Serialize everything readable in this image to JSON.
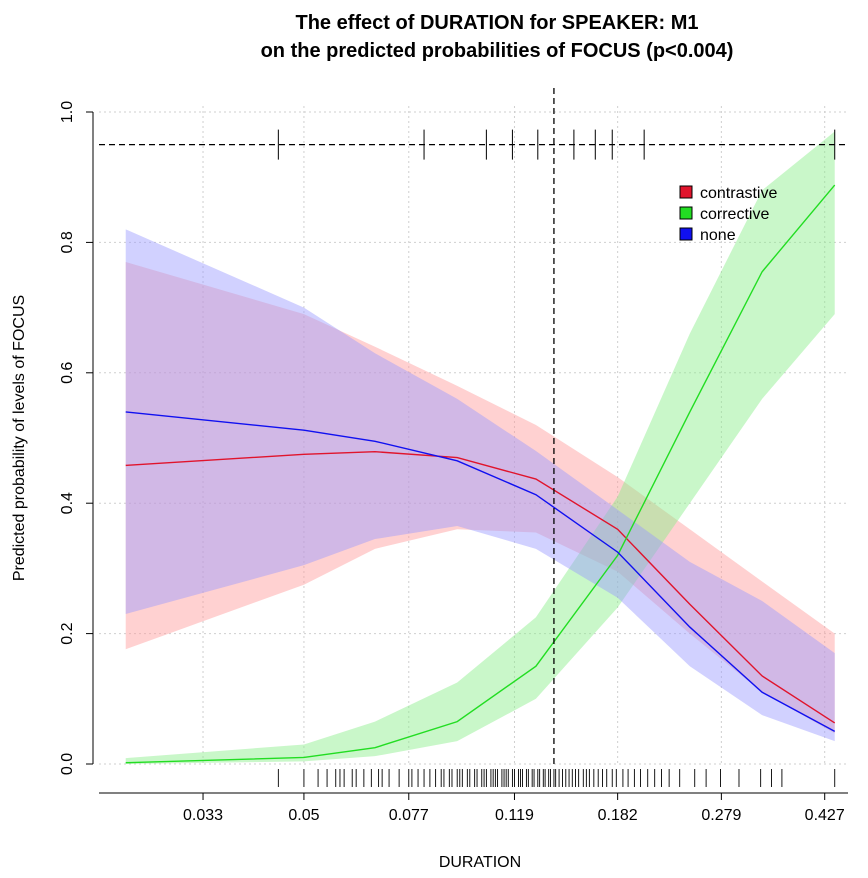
{
  "chart_data": {
    "type": "line",
    "title": "The effect of DURATION for SPEAKER: M1",
    "subtitle": "on the predicted probabilities of FOCUS (p<0.004)",
    "xlabel": "DURATION",
    "ylabel": "Predicted probability of levels of FOCUS",
    "x_scale": "log",
    "xlim": [
      0.0215,
      0.47
    ],
    "ylim": [
      0,
      1.0
    ],
    "x_ticks": [
      0.033,
      0.05,
      0.077,
      0.119,
      0.182,
      0.279,
      0.427
    ],
    "x_tick_labels": [
      "0.033",
      "0.05",
      "0.077",
      "0.119",
      "0.182",
      "0.279",
      "0.427"
    ],
    "y_ticks": [
      0,
      0.2,
      0.4,
      0.6,
      0.8,
      1.0
    ],
    "y_tick_labels": [
      "0.0",
      "0.2",
      "0.4",
      "0.6",
      "0.8",
      "1.0"
    ],
    "grid": true,
    "legend_position": "top-right",
    "colors": {
      "contrastive": "#e0142c",
      "corrective": "#22dd22",
      "none": "#1010f0",
      "contrastive_band": "#ff9a9a",
      "corrective_band": "#88ee88",
      "none_band": "#9a9aff"
    },
    "series": [
      {
        "name": "contrastive",
        "x": [
          0.024,
          0.05,
          0.067,
          0.094,
          0.13,
          0.182,
          0.245,
          0.33,
          0.445
        ],
        "values": [
          0.458,
          0.475,
          0.479,
          0.47,
          0.437,
          0.36,
          0.245,
          0.135,
          0.063
        ],
        "lower": [
          0.176,
          0.275,
          0.33,
          0.36,
          0.355,
          0.295,
          0.2,
          0.11,
          0.047
        ],
        "upper": [
          0.77,
          0.69,
          0.64,
          0.58,
          0.52,
          0.44,
          0.36,
          0.28,
          0.2
        ]
      },
      {
        "name": "corrective",
        "x": [
          0.024,
          0.05,
          0.067,
          0.094,
          0.13,
          0.182,
          0.245,
          0.33,
          0.445
        ],
        "values": [
          0.002,
          0.01,
          0.025,
          0.065,
          0.15,
          0.32,
          0.54,
          0.755,
          0.888
        ],
        "lower": [
          0.0,
          0.004,
          0.012,
          0.035,
          0.1,
          0.24,
          0.4,
          0.56,
          0.69
        ],
        "upper": [
          0.009,
          0.03,
          0.065,
          0.125,
          0.225,
          0.41,
          0.66,
          0.88,
          0.97
        ]
      },
      {
        "name": "none",
        "x": [
          0.024,
          0.05,
          0.067,
          0.094,
          0.13,
          0.182,
          0.245,
          0.33,
          0.445
        ],
        "values": [
          0.54,
          0.512,
          0.495,
          0.465,
          0.413,
          0.325,
          0.21,
          0.11,
          0.05
        ],
        "lower": [
          0.23,
          0.305,
          0.345,
          0.365,
          0.33,
          0.255,
          0.15,
          0.075,
          0.035
        ],
        "upper": [
          0.82,
          0.7,
          0.63,
          0.56,
          0.48,
          0.39,
          0.31,
          0.25,
          0.17
        ]
      }
    ],
    "reference_line": {
      "x": 0.14,
      "y": 0.95
    },
    "top_marks": [
      0.045,
      0.082,
      0.106,
      0.118,
      0.131,
      0.152,
      0.166,
      0.178,
      0.203,
      0.445
    ],
    "rug": [
      0.045,
      0.05,
      0.053,
      0.055,
      0.057,
      0.058,
      0.059,
      0.061,
      0.062,
      0.064,
      0.066,
      0.068,
      0.069,
      0.071,
      0.074,
      0.077,
      0.078,
      0.08,
      0.082,
      0.084,
      0.086,
      0.088,
      0.089,
      0.091,
      0.092,
      0.094,
      0.095,
      0.096,
      0.098,
      0.099,
      0.101,
      0.102,
      0.104,
      0.105,
      0.106,
      0.108,
      0.109,
      0.11,
      0.111,
      0.113,
      0.114,
      0.115,
      0.116,
      0.118,
      0.119,
      0.121,
      0.122,
      0.123,
      0.125,
      0.126,
      0.128,
      0.129,
      0.131,
      0.132,
      0.134,
      0.135,
      0.137,
      0.138,
      0.14,
      0.141,
      0.143,
      0.145,
      0.147,
      0.149,
      0.151,
      0.153,
      0.155,
      0.158,
      0.16,
      0.162,
      0.165,
      0.168,
      0.171,
      0.174,
      0.178,
      0.181,
      0.186,
      0.19,
      0.195,
      0.2,
      0.206,
      0.212,
      0.218,
      0.225,
      0.235,
      0.25,
      0.262,
      0.278,
      0.3,
      0.328,
      0.343,
      0.358,
      0.445
    ]
  }
}
